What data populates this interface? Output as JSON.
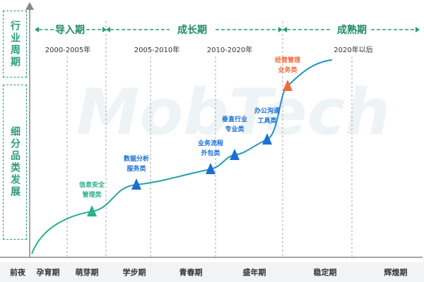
{
  "axis": {
    "top_label": "行业周期",
    "bottom_label": "细分品类发展"
  },
  "phases": [
    "导入期",
    "成长期",
    "成熟期"
  ],
  "periods": [
    "2000-2005年",
    "2005-2010年",
    "2010-2020年",
    "2020年以后"
  ],
  "nodes": [
    {
      "lines": [
        "信息安全",
        "管理类"
      ]
    },
    {
      "lines": [
        "数据分析",
        "服务类"
      ]
    },
    {
      "lines": [
        "业务流程",
        "外包类"
      ]
    },
    {
      "lines": [
        "垂直行业",
        "专业类"
      ]
    },
    {
      "lines": [
        "办公沟通",
        "工具类"
      ]
    },
    {
      "lines": [
        "经营管理",
        "业务类"
      ]
    }
  ],
  "stages": [
    "前夜",
    "孕育期",
    "萌芽期",
    "学步期",
    "青春期",
    "盛年期",
    "稳定期",
    "辉煌期"
  ],
  "watermark": "MobTech"
}
